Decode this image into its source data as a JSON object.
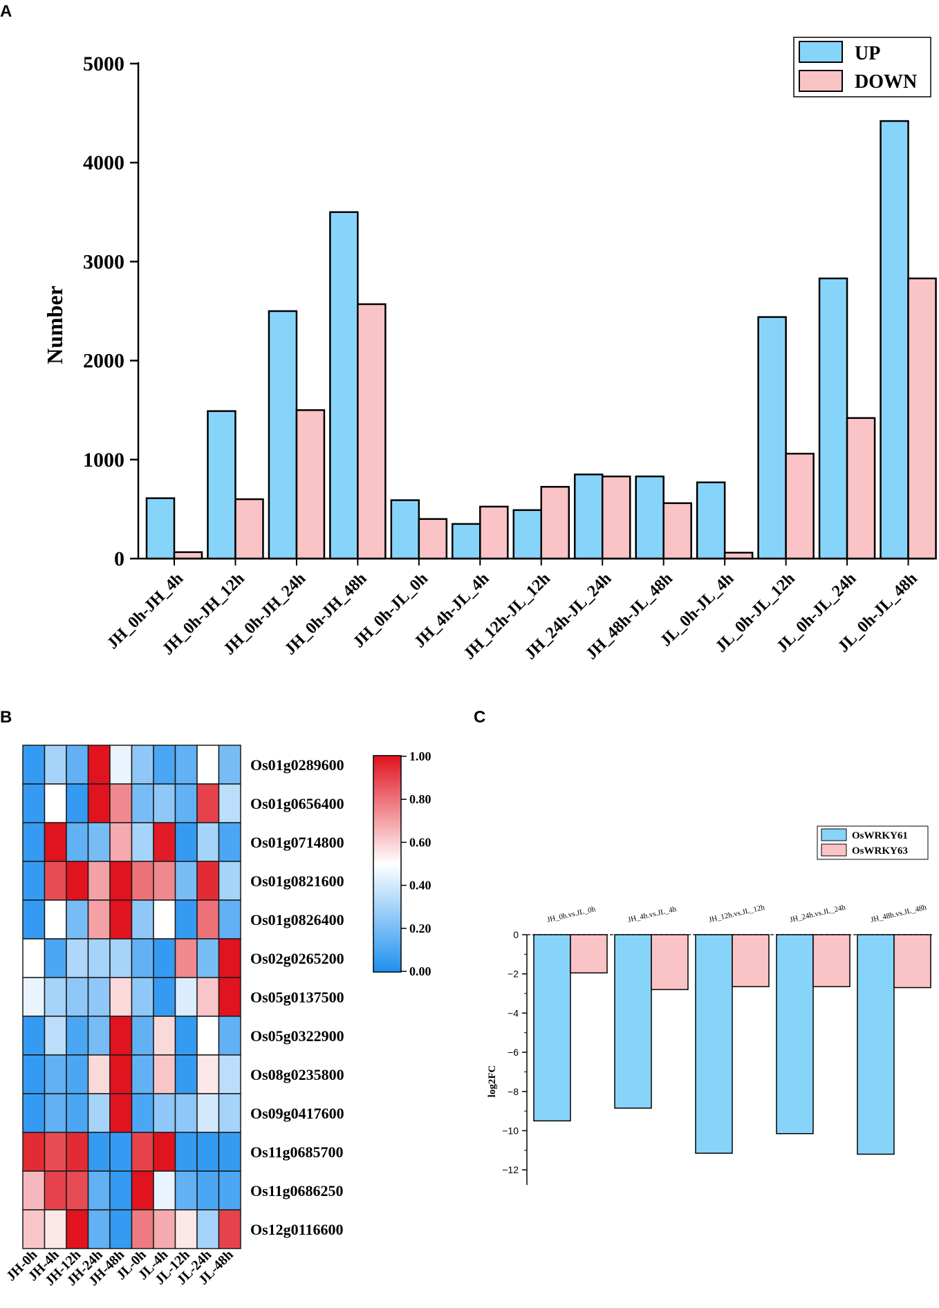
{
  "colors": {
    "up": "#87D4FA",
    "down": "#FAC3C5",
    "cold": "#1E90F0",
    "mid": "#FFFFFF",
    "hot": "#E0131F"
  },
  "chart_data": [
    {
      "panel": "A",
      "type": "bar",
      "ylabel": "Number",
      "ylim": [
        0,
        5000
      ],
      "yticks": [
        "0",
        "1000",
        "2000",
        "3000",
        "4000",
        "5000"
      ],
      "legend_position": "top-right",
      "categories": [
        "JH_0h-JH_4h",
        "JH_0h-JH_12h",
        "JH_0h-JH_24h",
        "JH_0h-JH_48h",
        "JH_0h-JL_0h",
        "JH_4h-JL_4h",
        "JH_12h-JL_12h",
        "JH_24h-JL_24h",
        "JH_48h-JL_48h",
        "JL_0h-JL_4h",
        "JL_0h-JL_12h",
        "JL_0h-JL_24h",
        "JL_0h-JL_48h"
      ],
      "series": [
        {
          "name": "UP",
          "values": [
            610,
            1490,
            2500,
            3500,
            590,
            350,
            490,
            850,
            830,
            770,
            2440,
            2830,
            4420
          ]
        },
        {
          "name": "DOWN",
          "values": [
            65,
            600,
            1500,
            2570,
            400,
            525,
            725,
            830,
            560,
            60,
            1060,
            1420,
            2830
          ]
        }
      ]
    },
    {
      "panel": "B",
      "type": "heatmap",
      "rows": [
        "Os01g0289600",
        "Os01g0656400",
        "Os01g0714800",
        "Os01g0821600",
        "Os01g0826400",
        "Os02g0265200",
        "Os05g0137500",
        "Os05g0322900",
        "Os08g0235800",
        "Os09g0417600",
        "Os11g0685700",
        "Os11g0686250",
        "Os12g0116600"
      ],
      "columns": [
        "JH-0h",
        "JH-4h",
        "JH-12h",
        "JH-24h",
        "JH-48h",
        "JL-0h",
        "JL-4h",
        "JL-12h",
        "JL-24h",
        "JL-48h"
      ],
      "values": [
        [
          0.05,
          0.3,
          0.15,
          1.0,
          0.45,
          0.25,
          0.1,
          0.15,
          0.5,
          0.2
        ],
        [
          0.05,
          0.5,
          0.05,
          1.0,
          0.75,
          0.2,
          0.25,
          0.15,
          0.9,
          0.35
        ],
        [
          0.05,
          1.0,
          0.15,
          0.2,
          0.68,
          0.3,
          0.98,
          0.05,
          0.3,
          0.1
        ],
        [
          0.05,
          0.88,
          1.0,
          0.7,
          1.0,
          0.8,
          0.75,
          0.2,
          0.95,
          0.3
        ],
        [
          0.05,
          0.5,
          0.2,
          0.7,
          1.0,
          0.25,
          0.5,
          0.05,
          0.8,
          0.15
        ],
        [
          0.5,
          0.1,
          0.32,
          0.3,
          0.3,
          0.15,
          0.05,
          0.75,
          0.2,
          1.0
        ],
        [
          0.45,
          0.3,
          0.25,
          0.25,
          0.58,
          0.25,
          0.05,
          0.42,
          0.62,
          1.0
        ],
        [
          0.05,
          0.35,
          0.1,
          0.2,
          1.0,
          0.15,
          0.58,
          0.05,
          0.5,
          0.15
        ],
        [
          0.05,
          0.15,
          0.1,
          0.58,
          1.0,
          0.15,
          0.62,
          0.05,
          0.55,
          0.35
        ],
        [
          0.05,
          0.15,
          0.1,
          0.3,
          1.0,
          0.1,
          0.25,
          0.25,
          0.4,
          0.3
        ],
        [
          0.95,
          0.88,
          0.95,
          0.05,
          0.05,
          0.9,
          1.0,
          0.05,
          0.05,
          0.05
        ],
        [
          0.65,
          0.9,
          0.88,
          0.15,
          0.05,
          1.0,
          0.45,
          0.15,
          0.1,
          0.1
        ],
        [
          0.62,
          0.55,
          1.0,
          0.15,
          0.05,
          0.78,
          0.68,
          0.55,
          0.3,
          0.9
        ]
      ],
      "colorbar": {
        "min": 0.0,
        "max": 1.0,
        "ticks": [
          "1.00",
          "0.80",
          "0.60",
          "0.40",
          "0.20",
          "0.00"
        ]
      }
    },
    {
      "panel": "C",
      "type": "bar",
      "ylabel": "log2FC",
      "ylim": [
        -13,
        0
      ],
      "yticks": [
        "0",
        "−2",
        "−4",
        "−6",
        "−8",
        "−10",
        "−12"
      ],
      "legend_position": "top-right",
      "categories": [
        "JH_0h.vs.JL_0h",
        "JH_4h.vs.JL_4h",
        "JH_12h.vs.JL_12h",
        "JH_24h.vs.JL_24h",
        "JH_48h.vs.JL_48h"
      ],
      "series": [
        {
          "name": "OsWRKY61",
          "values": [
            -9.5,
            -8.85,
            -11.15,
            -10.15,
            -11.2
          ]
        },
        {
          "name": "OsWRKY63",
          "values": [
            -1.95,
            -2.8,
            -2.65,
            -2.65,
            -2.7
          ]
        }
      ]
    }
  ],
  "panels": {
    "a": "A",
    "b": "B",
    "c": "C"
  }
}
